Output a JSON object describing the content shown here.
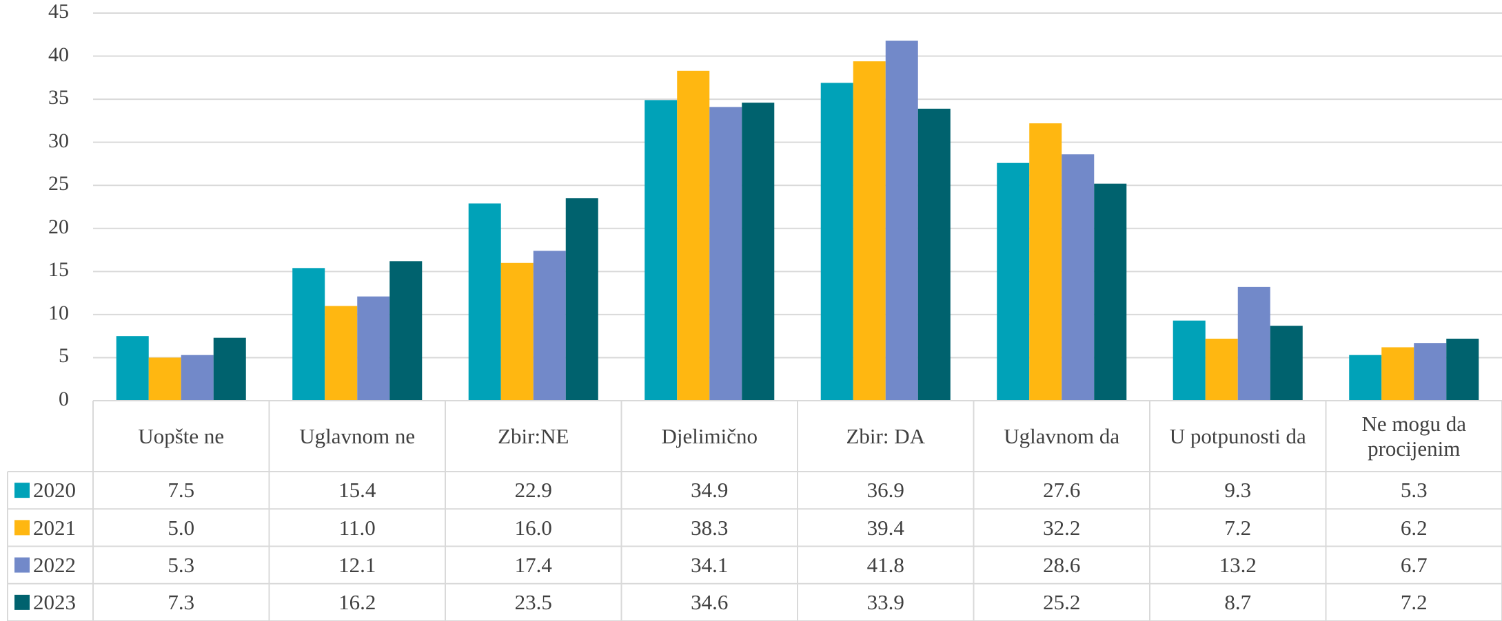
{
  "chart_data": {
    "type": "bar",
    "categories": [
      "Uopšte ne",
      "Uglavnom ne",
      "Zbir:NE",
      "Djelimično",
      "Zbir: DA",
      "Uglavnom da",
      "U potpunosti da",
      "Ne mogu da procijenim"
    ],
    "series": [
      {
        "name": "2020",
        "color": "#00a2b8",
        "values": [
          7.5,
          15.4,
          22.9,
          34.9,
          36.9,
          27.6,
          9.3,
          5.3
        ],
        "value_labels": [
          "7.5",
          "15.4",
          "22.9",
          "34.9",
          "36.9",
          "27.6",
          "9.3",
          "5.3"
        ]
      },
      {
        "name": "2021",
        "color": "#ffb711",
        "values": [
          5.0,
          11.0,
          16.0,
          38.3,
          39.4,
          32.2,
          7.2,
          6.2
        ],
        "value_labels": [
          "5.0",
          "11.0",
          "16.0",
          "38.3",
          "39.4",
          "32.2",
          "7.2",
          "6.2"
        ]
      },
      {
        "name": "2022",
        "color": "#7289c9",
        "values": [
          5.3,
          12.1,
          17.4,
          34.1,
          41.8,
          28.6,
          13.2,
          6.7
        ],
        "value_labels": [
          "5.3",
          "12.1",
          "17.4",
          "34.1",
          "41.8",
          "28.6",
          "13.2",
          "6.7"
        ]
      },
      {
        "name": "2023",
        "color": "#00626e",
        "values": [
          7.3,
          16.2,
          23.5,
          34.6,
          33.9,
          25.2,
          8.7,
          7.2
        ],
        "value_labels": [
          "7.3",
          "16.2",
          "23.5",
          "34.6",
          "33.9",
          "25.2",
          "8.7",
          "7.2"
        ]
      }
    ],
    "ylim": [
      0,
      45
    ],
    "yticks": [
      0,
      5,
      10,
      15,
      20,
      25,
      30,
      35,
      40,
      45
    ],
    "grid": true
  }
}
